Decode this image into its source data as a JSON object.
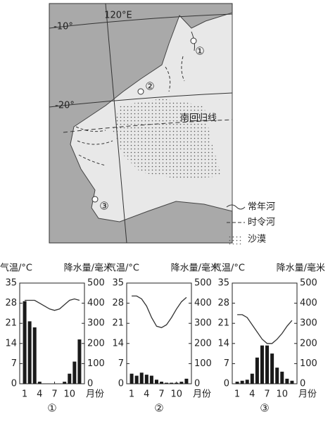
{
  "map": {
    "labels": {
      "lat10": "-10°",
      "lat20": "-20°",
      "meridian": "120°E",
      "tropic": "南回归线"
    },
    "markers": [
      "①",
      "②",
      "③"
    ],
    "legend": [
      "常年河",
      "时令河",
      "沙漠"
    ]
  },
  "chart_data": [
    {
      "type": "climate",
      "caption": "①",
      "ylabel": "气温/°C",
      "y2label": "降水量/毫米",
      "xlabel": "月份",
      "x": [
        1,
        2,
        3,
        4,
        5,
        6,
        7,
        8,
        9,
        10,
        11,
        12
      ],
      "xlim": [
        0,
        13
      ],
      "xticks": [
        1,
        4,
        7,
        10
      ],
      "ylim": [
        0,
        35
      ],
      "yticks": [
        0,
        7,
        14,
        21,
        28,
        35
      ],
      "y2lim": [
        0,
        500
      ],
      "y2ticks": [
        0,
        100,
        200,
        300,
        400,
        500
      ],
      "series": [
        {
          "kind": "line",
          "color": "#333333",
          "values": [
            29,
            29,
            29,
            28,
            27,
            26,
            25.5,
            26,
            27.5,
            29,
            29.5,
            29
          ]
        },
        {
          "kind": "bar",
          "axis": "y2",
          "color": "#1a1a1a",
          "values": [
            410,
            310,
            280,
            10,
            0,
            0,
            0,
            0,
            10,
            50,
            110,
            220
          ]
        }
      ]
    },
    {
      "type": "climate",
      "caption": "②",
      "ylabel": "气温/°C",
      "y2label": "降水量/毫米",
      "xlabel": "月份",
      "x": [
        1,
        2,
        3,
        4,
        5,
        6,
        7,
        8,
        9,
        10,
        11,
        12
      ],
      "xlim": [
        0,
        13
      ],
      "xticks": [
        1,
        4,
        7,
        10
      ],
      "ylim": [
        0,
        35
      ],
      "yticks": [
        0,
        7,
        14,
        21,
        28,
        35
      ],
      "y2lim": [
        0,
        500
      ],
      "y2ticks": [
        0,
        100,
        200,
        300,
        400,
        500
      ],
      "series": [
        {
          "kind": "line",
          "color": "#333333",
          "values": [
            30.5,
            30.5,
            29.5,
            27,
            23,
            20,
            19.5,
            20.5,
            23,
            26,
            28.5,
            30
          ]
        },
        {
          "kind": "bar",
          "axis": "y2",
          "color": "#1a1a1a",
          "values": [
            50,
            40,
            55,
            45,
            40,
            20,
            10,
            5,
            5,
            5,
            10,
            25
          ]
        }
      ]
    },
    {
      "type": "climate",
      "caption": "③",
      "ylabel": "气温/°C",
      "y2label": "降水量/毫米",
      "xlabel": "月份",
      "x": [
        1,
        2,
        3,
        4,
        5,
        6,
        7,
        8,
        9,
        10,
        11,
        12
      ],
      "xlim": [
        0,
        13
      ],
      "xticks": [
        1,
        4,
        7,
        10
      ],
      "ylim": [
        0,
        35
      ],
      "yticks": [
        0,
        7,
        14,
        21,
        28,
        35
      ],
      "y2lim": [
        0,
        500
      ],
      "y2ticks": [
        0,
        100,
        200,
        300,
        400,
        500
      ],
      "series": [
        {
          "kind": "line",
          "color": "#333333",
          "values": [
            24,
            24,
            23,
            20.5,
            18,
            15.5,
            14,
            14,
            15.5,
            17.5,
            20,
            22
          ]
        },
        {
          "kind": "bar",
          "axis": "y2",
          "color": "#1a1a1a",
          "values": [
            10,
            15,
            20,
            50,
            130,
            190,
            190,
            150,
            80,
            60,
            25,
            15
          ]
        }
      ]
    }
  ]
}
